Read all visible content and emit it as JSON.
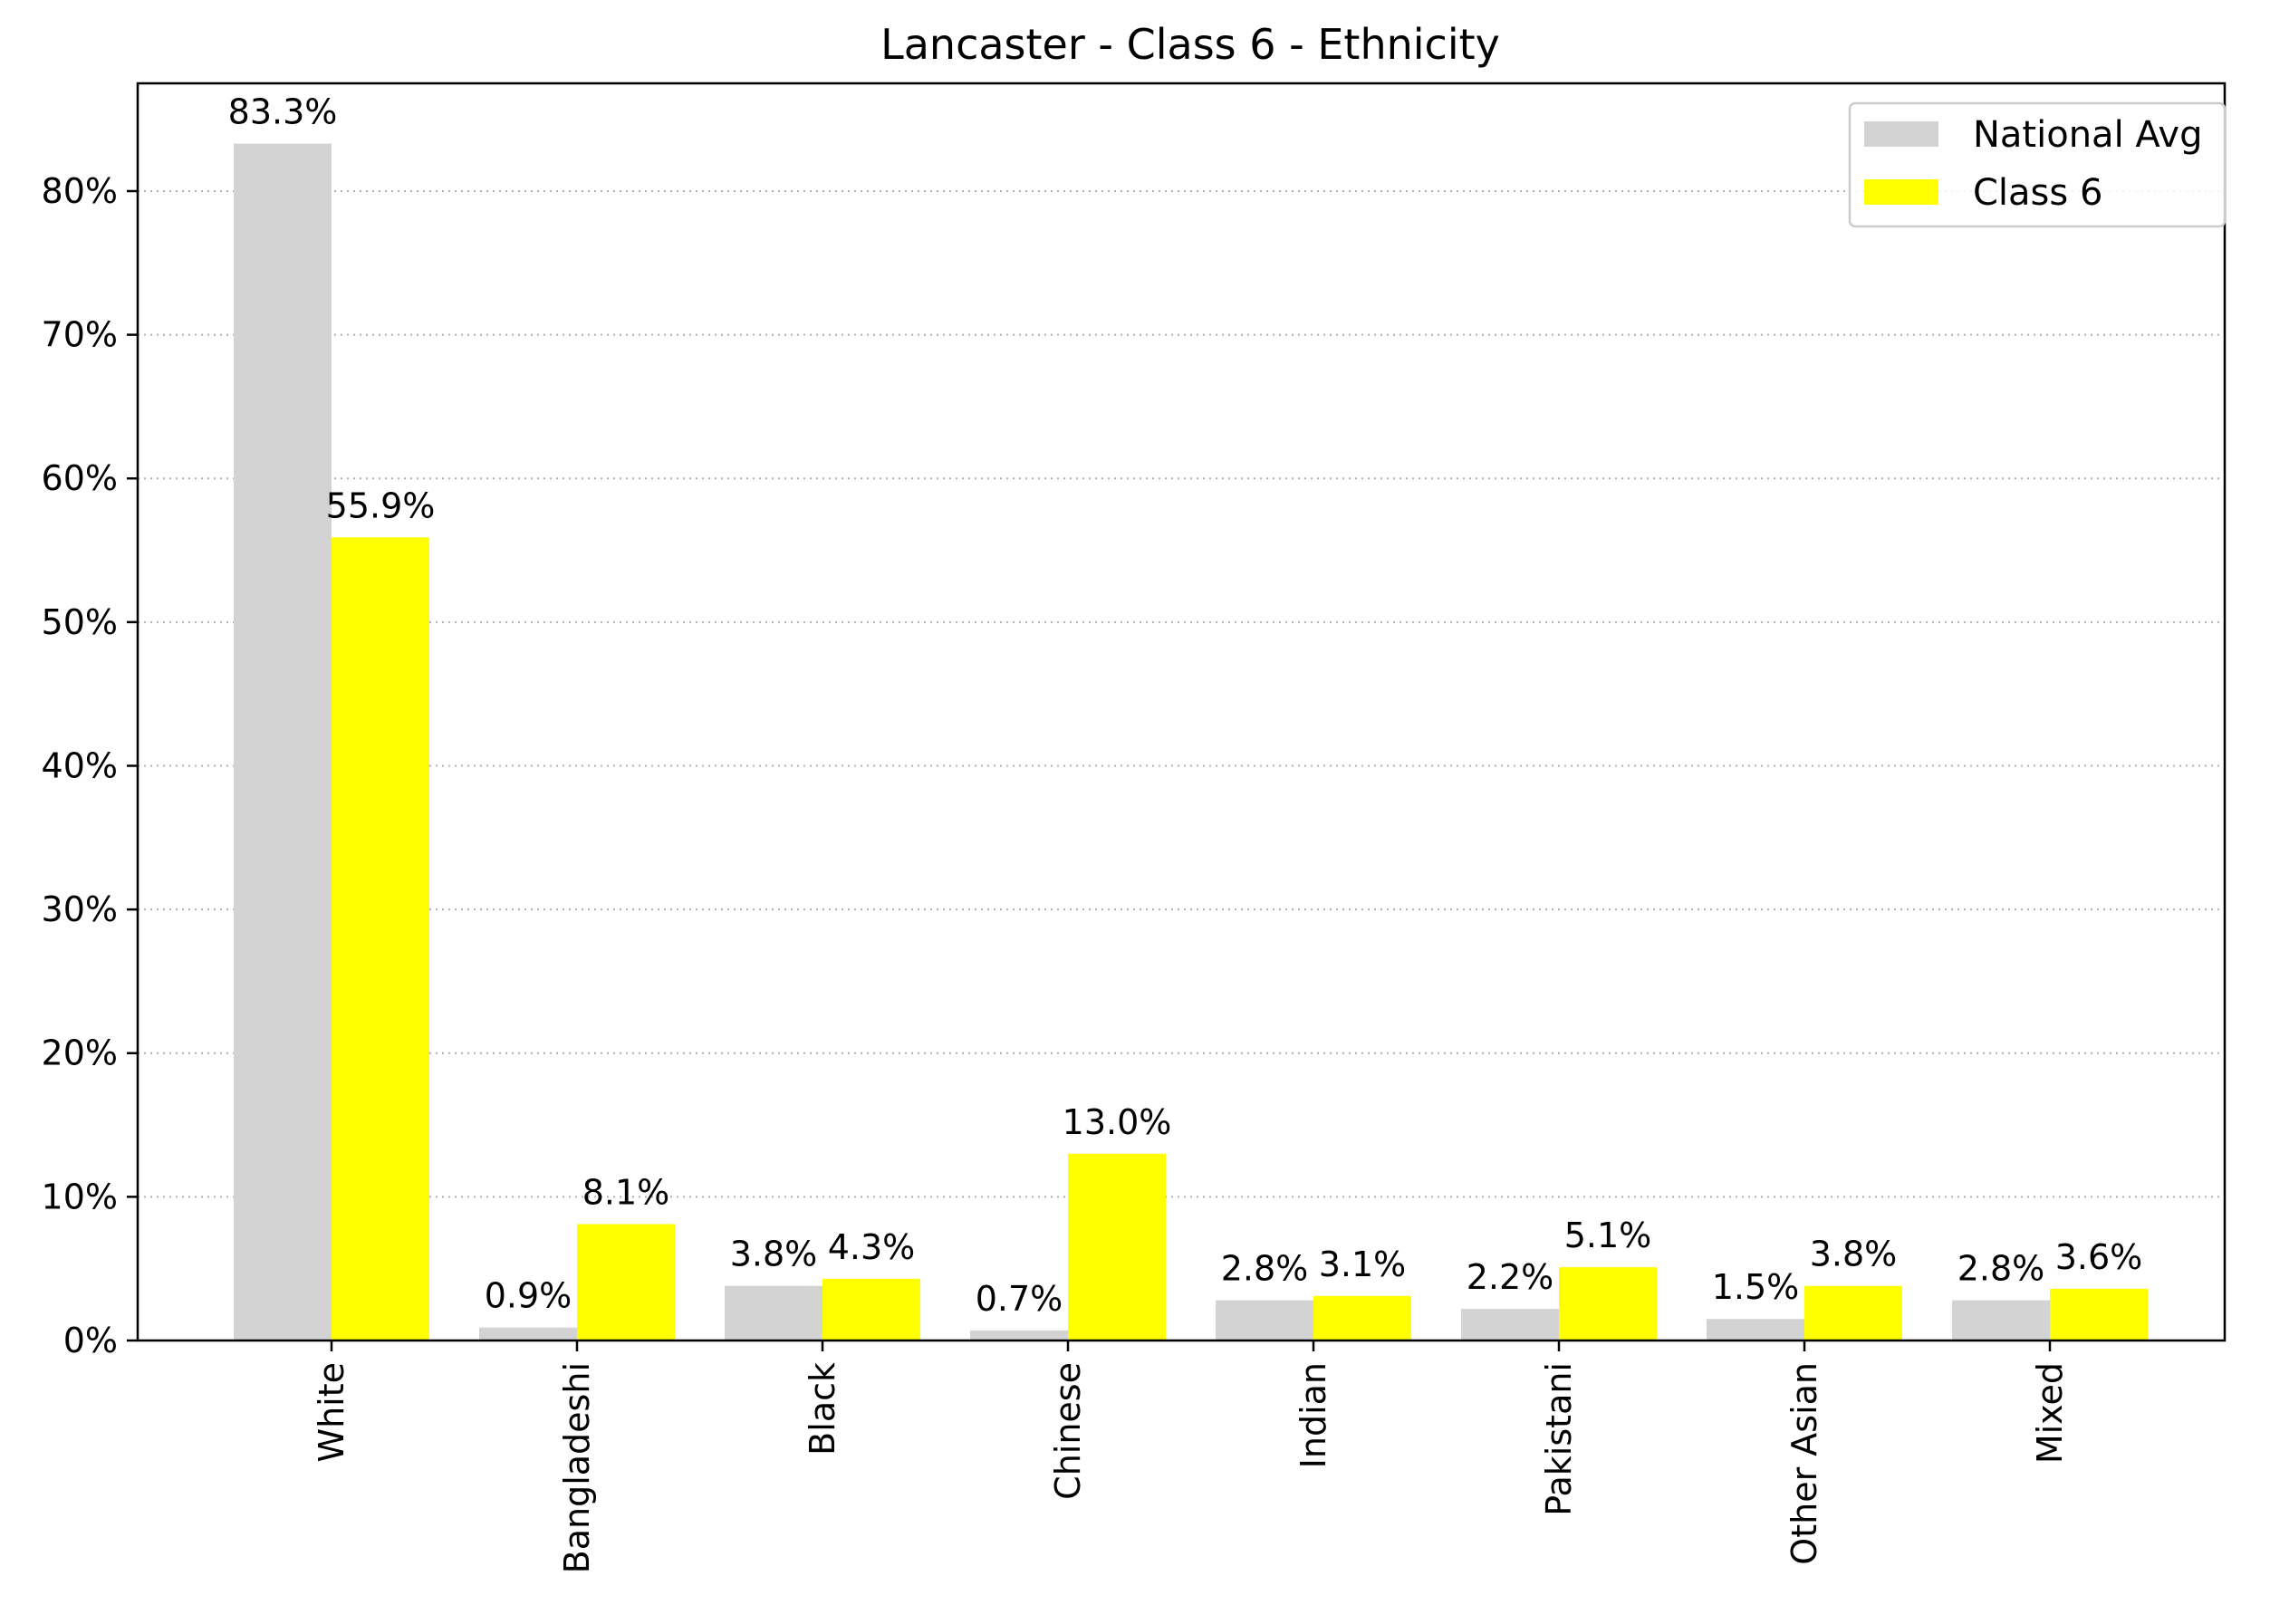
{
  "chart_data": {
    "type": "bar",
    "title": "Lancaster - Class 6 - Ethnicity",
    "xlabel": "",
    "ylabel": "",
    "categories": [
      "White",
      "Bangladeshi",
      "Black",
      "Chinese",
      "Indian",
      "Pakistani",
      "Other Asian",
      "Mixed"
    ],
    "series": [
      {
        "name": "National Avg",
        "color": "#d3d3d3",
        "values": [
          83.3,
          0.9,
          3.8,
          0.7,
          2.8,
          2.2,
          1.5,
          2.8
        ],
        "labels": [
          "83.3%",
          "0.9%",
          "3.8%",
          "0.7%",
          "2.8%",
          "2.2%",
          "1.5%",
          "2.8%"
        ]
      },
      {
        "name": "Class 6",
        "color": "#ffff00",
        "values": [
          55.9,
          8.1,
          4.3,
          13.0,
          3.1,
          5.1,
          3.8,
          3.6
        ],
        "labels": [
          "55.9%",
          "8.1%",
          "4.3%",
          "13.0%",
          "3.1%",
          "5.1%",
          "3.8%",
          "3.6%"
        ]
      }
    ],
    "yticks": [
      0,
      10,
      20,
      30,
      40,
      50,
      60,
      70,
      80
    ],
    "ytick_labels": [
      "0%",
      "10%",
      "20%",
      "30%",
      "40%",
      "50%",
      "60%",
      "70%",
      "80%"
    ],
    "ylim": [
      0,
      87.5
    ],
    "grid": "horizontal dotted",
    "legend_position": "top-right"
  }
}
